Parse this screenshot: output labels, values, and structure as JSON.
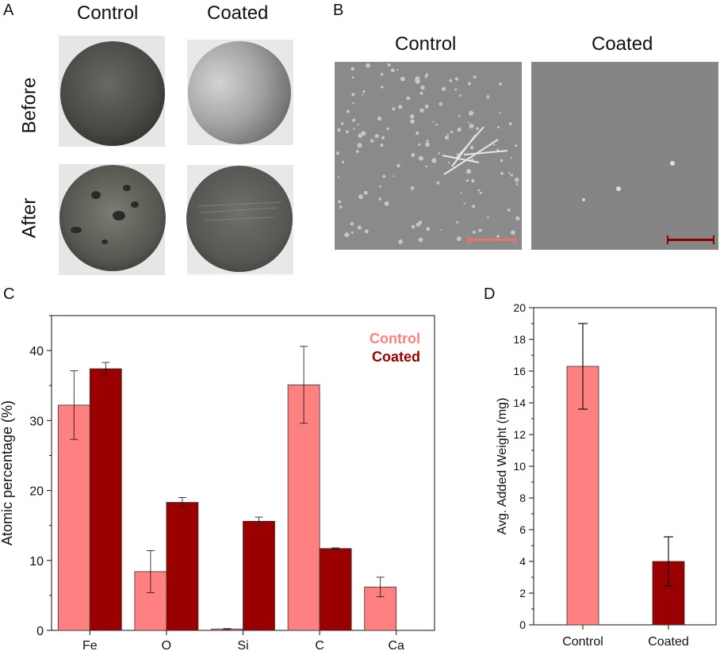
{
  "panels": {
    "a": {
      "letter": "A",
      "col_control": "Control",
      "col_coated": "Coated",
      "row_before": "Before",
      "row_after": "After"
    },
    "b": {
      "letter": "B",
      "col_control": "Control",
      "col_coated": "Coated"
    },
    "c": {
      "letter": "C"
    },
    "d": {
      "letter": "D"
    }
  },
  "colors": {
    "control": "#ff8080",
    "coated": "#9b0000",
    "scalebar_control": "#f07070",
    "scalebar_coated": "#8b0000"
  },
  "chart_data": [
    {
      "type": "bar",
      "panel": "C",
      "categories": [
        "Fe",
        "O",
        "Si",
        "C",
        "Ca"
      ],
      "series": [
        {
          "name": "Control",
          "values": [
            32.2,
            8.4,
            0.2,
            35.1,
            6.2
          ],
          "errors": [
            4.9,
            3.0,
            0.05,
            5.5,
            1.4
          ]
        },
        {
          "name": "Coated",
          "values": [
            37.4,
            18.3,
            15.6,
            11.7,
            0
          ],
          "errors": [
            0.9,
            0.7,
            0.6,
            0.1,
            0
          ]
        }
      ],
      "xlabel": "",
      "ylabel": "Atomic percentage (%)",
      "ylim": [
        0,
        45
      ],
      "yticks": [
        0,
        10,
        20,
        30,
        40
      ],
      "legend": "top-right",
      "grid": false
    },
    {
      "type": "bar",
      "panel": "D",
      "categories": [
        "Control",
        "Coated"
      ],
      "values": [
        16.3,
        4.0
      ],
      "errors": [
        2.7,
        1.55
      ],
      "xlabel": "",
      "ylabel": "Avg. Added Weight (mg)",
      "ylim": [
        0,
        20
      ],
      "yticks": [
        0,
        2,
        4,
        6,
        8,
        10,
        12,
        14,
        16,
        18,
        20
      ],
      "grid": false
    }
  ]
}
